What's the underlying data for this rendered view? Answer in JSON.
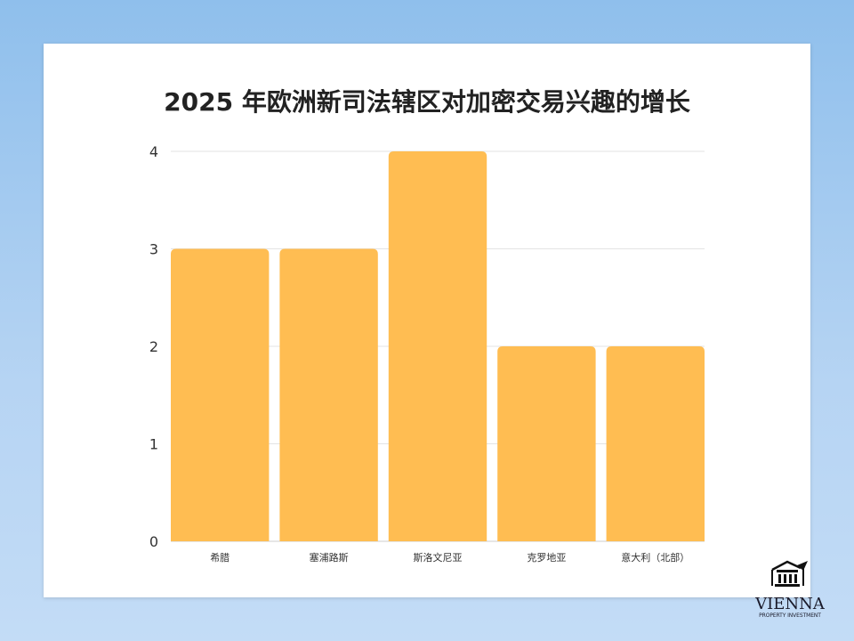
{
  "chart_data": {
    "type": "bar",
    "title": "2025 年欧洲新司法辖区对加密交易兴趣的增长",
    "categories": [
      "希腊",
      "塞浦路斯",
      "斯洛文尼亚",
      "克罗地亚",
      "意大利（北部）"
    ],
    "values": [
      3,
      3,
      4,
      2,
      2
    ],
    "ylim": [
      0,
      4
    ],
    "yticks": [
      0,
      1,
      2,
      3,
      4
    ],
    "grid": true,
    "bar_color": "#ffbd52",
    "xlabel": "",
    "ylabel": ""
  },
  "logo": {
    "name": "VIENNA",
    "subtitle": "PROPERTY INVESTMENT"
  }
}
